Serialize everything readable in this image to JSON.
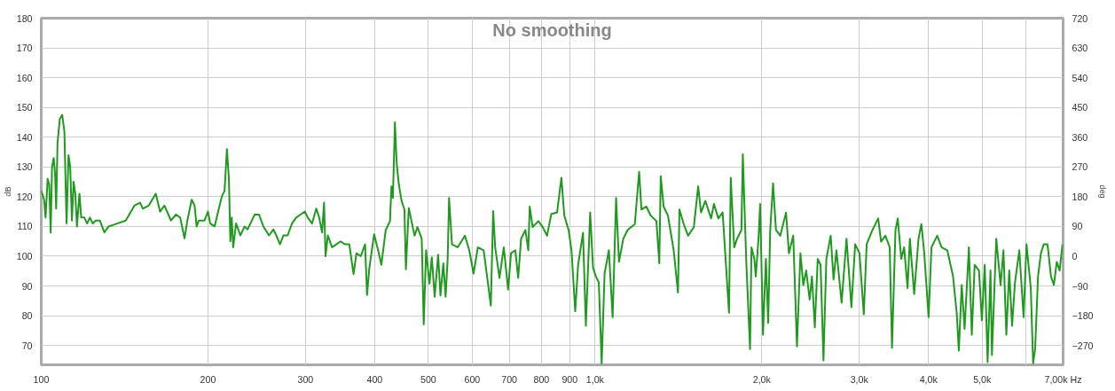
{
  "chart_data": {
    "type": "line",
    "title": "No smoothing",
    "ylabel": "dB",
    "y2label": "deg",
    "x": [
      100,
      101.2,
      101.8,
      102.7,
      103.4,
      104.0,
      104.6,
      105.3,
      105.9,
      106.4,
      107.0,
      108.0,
      109.1,
      110.1,
      111.1,
      112.0,
      112.8,
      113.6,
      114.4,
      115.2,
      116.0,
      117.2,
      118.1,
      119.6,
      121.0,
      122.4,
      123.9,
      125.4,
      127.6,
      130.0,
      132.3,
      137.1,
      142.1,
      147.3,
      150.8,
      152.6,
      156.3,
      161.0,
      163.9,
      166.9,
      171.5,
      175.1,
      178.2,
      181.4,
      183.6,
      186.9,
      189.2,
      190.8,
      192.6,
      197.2,
      200.0,
      201.9,
      205.6,
      208.0,
      211.8,
      214.3,
      216.4,
      218.2,
      219.5,
      220.8,
      222.1,
      224.8,
      228.8,
      232.9,
      235.8,
      238.6,
      242.9,
      247.3,
      251.8,
      257.8,
      262.5,
      265.7,
      269.8,
      273.7,
      278.6,
      283.6,
      288.7,
      293.9,
      299.2,
      302.8,
      308.3,
      313.8,
      317.6,
      321.4,
      324.1,
      326.1,
      329.2,
      335.0,
      341.1,
      347.2,
      353.5,
      359.9,
      366.4,
      370.8,
      377.5,
      384.3,
      387.5,
      391.2,
      399.1,
      406.4,
      411.3,
      418.8,
      426.3,
      428.9,
      431.5,
      435.1,
      438.3,
      442.0,
      447.3,
      452.7,
      455.4,
      460.9,
      472.1,
      477.8,
      486.4,
      490.5,
      495.3,
      502.3,
      507.2,
      513.3,
      520.8,
      525.8,
      532.1,
      537.2,
      541.8,
      545.0,
      551.6,
      564.9,
      582.1,
      592.7,
      603.4,
      614.3,
      629.2,
      638.3,
      648.3,
      654.6,
      660.1,
      672.0,
      684.2,
      696.6,
      705.0,
      717.8,
      726.4,
      735.2,
      748.5,
      757.6,
      762.1,
      771.3,
      790.0,
      804.3,
      818.9,
      833.7,
      853.9,
      869.4,
      879.8,
      895.8,
      906.6,
      920.8,
      931.9,
      951.1,
      962.4,
      979.8,
      991.6,
      1003.6,
      1015.6,
      1027.9,
      1040.3,
      1059.1,
      1075.8,
      1091.4,
      1104.5,
      1124.5,
      1144.9,
      1179.7,
      1201.1,
      1212.6,
      1237.6,
      1260.0,
      1290.5,
      1306.1,
      1313.9,
      1329.7,
      1353.8,
      1386.6,
      1411.7,
      1420.2,
      1445.9,
      1472.1,
      1507.8,
      1535.1,
      1553.6,
      1581.7,
      1620.0,
      1639.5,
      1669.2,
      1699.5,
      1745.3,
      1757.9,
      1783.3,
      1804.8,
      1837.5,
      1848.5,
      1859.6,
      1875.2,
      1904.7,
      1916.1,
      1939.2,
      1950.8,
      1974.3,
      1986.2,
      1998.1,
      2010.1,
      2034.3,
      2053.9,
      2071.2,
      2096.1,
      2121.4,
      2159.8,
      2212.1,
      2238.8,
      2279.3,
      2315.1,
      2348.6,
      2376.9,
      2405.5,
      2440.3,
      2463.8,
      2493.4,
      2523.5,
      2553.9,
      2584.6,
      2615.8,
      2663.2,
      2695.3,
      2727.8,
      2787.2,
      2844.5,
      2903.0,
      2948.6,
      3002.0,
      3056.4,
      3093.2,
      3168.2,
      3244.9,
      3284.0,
      3343.5,
      3404.1,
      3436.9,
      3486.6,
      3520.2,
      3571.1,
      3614.1,
      3666.4,
      3701.7,
      3768.8,
      3837.1,
      3883.3,
      3930.1,
      4001.3,
      4049.5,
      4147.6,
      4222.8,
      4325.1,
      4430.0,
      4499.5,
      4537.3,
      4592.0,
      4647.3,
      4731.5,
      4788.5,
      4846.2,
      4934.0,
      4993.4,
      5053.6,
      5114.4,
      5176.0,
      5207.1,
      5301.4,
      5397.5,
      5462.5,
      5528.3,
      5594.9,
      5662.3,
      5730.5,
      5834.3,
      5940.0,
      6011.6,
      6120.5,
      6179.4,
      6231.4,
      6306.5,
      6382.4,
      6459.3,
      6560.7,
      6655.6,
      6735.8,
      6816.9,
      6899.0,
      6982.1
    ],
    "series": [
      {
        "color": "#1f9a1f",
        "values": [
          122,
          119,
          113,
          126,
          124,
          108,
          130,
          133,
          128,
          116,
          138,
          146,
          147.5,
          142,
          111,
          134,
          130,
          112,
          125,
          121,
          110,
          121,
          113,
          113,
          111,
          113,
          111,
          112,
          112,
          108,
          110,
          111,
          112,
          117,
          118,
          116,
          117,
          121,
          115,
          117,
          112,
          114,
          113,
          106,
          112,
          119,
          117,
          110,
          112,
          112,
          115,
          111,
          110,
          114,
          120,
          122,
          136,
          126,
          105,
          113,
          103,
          111,
          107,
          110,
          109,
          111,
          114,
          114,
          110,
          107,
          109,
          107,
          104,
          107,
          107,
          111,
          113,
          114,
          115,
          113,
          111,
          116,
          113,
          108,
          118,
          100,
          107,
          103,
          104,
          105,
          104,
          104,
          94,
          101,
          100,
          104,
          87,
          96,
          107.4,
          101.5,
          97.1,
          108.8,
          111.8,
          123.5,
          119.6,
          145.0,
          131.3,
          124.5,
          118.6,
          115.7,
          95.6,
          116.2,
          106.9,
          109.8,
          105.9,
          77.1,
          102.0,
          90.8,
          99.6,
          86.4,
          100.5,
          86.8,
          97.6,
          86.4,
          99.1,
          119.6,
          104.0,
          103.0,
          106.9,
          102.0,
          94.2,
          103.0,
          102.0,
          93.2,
          83.4,
          115.2,
          103.0,
          92.7,
          103.0,
          88.8,
          101.0,
          102.0,
          92.7,
          105.9,
          108.8,
          102.0,
          116.7,
          109.8,
          111.8,
          109.8,
          106.9,
          114.2,
          114.7,
          126.4,
          113.7,
          108.8,
          102.0,
          81.5,
          97.1,
          107.9,
          76.6,
          114.7,
          96.1,
          93.2,
          91.2,
          64,
          94.2,
          102.0,
          79.5,
          119.6,
          98.1,
          105.9,
          108.8,
          110.8,
          128.4,
          115.7,
          116.7,
          113.7,
          111.8,
          97.6,
          126.9,
          116.7,
          113.7,
          102.0,
          87.8,
          115.7,
          110.8,
          106.9,
          109.8,
          123.5,
          114.7,
          118.6,
          112.7,
          117.6,
          112.7,
          114.7,
          81.0,
          126.4,
          103.0,
          105.9,
          108.8,
          134.3,
          118.6,
          98.1,
          68.8,
          103.0,
          99.1,
          93.2,
          106.9,
          117.6,
          96.1,
          73.6,
          99.1,
          77.6,
          108.8,
          124.5,
          108.8,
          106.9,
          114.7,
          101.0,
          106.9,
          69.7,
          101.0,
          90.3,
          95.2,
          85.4,
          93.2,
          76.1,
          99.1,
          97.1,
          65,
          99.1,
          106.9,
          92.2,
          102.0,
          84.4,
          105.9,
          82.9,
          104.0,
          101.0,
          80.5,
          104.0,
          108.8,
          112.7,
          104.9,
          106.9,
          103.0,
          69.2,
          108.8,
          112.7,
          99.1,
          103.0,
          89.3,
          105.9,
          87.3,
          105.9,
          110.8,
          101.0,
          79.5,
          103.0,
          106.9,
          103.0,
          102.0,
          93.2,
          80.5,
          68.3,
          90.3,
          75.6,
          103.0,
          73.6,
          97.1,
          95.2,
          78.5,
          97.1,
          64.5,
          95.2,
          66.8,
          105.9,
          90.3,
          102.0,
          73.6,
          95.2,
          76.6,
          91.2,
          102.0,
          79.5,
          104.0,
          89.3,
          64,
          68.8,
          93.2,
          101.0,
          104.0,
          104.0,
          93.2,
          90.3,
          98.1,
          95.2,
          104.0
        ]
      }
    ],
    "xlim": [
      100,
      7000
    ],
    "xticks": [
      100,
      200,
      300,
      400,
      500,
      600,
      700,
      800,
      900,
      {
        "value": 1000,
        "label": "1,0k"
      },
      {
        "value": 2000,
        "label": "2,0k"
      },
      {
        "value": 3000,
        "label": "3,0k"
      },
      {
        "value": 4000,
        "label": "4,0k"
      },
      {
        "value": 5000,
        "label": "5,0k"
      },
      {
        "value": 6000,
        "label": null
      },
      {
        "value": 7000,
        "label": "7,00k Hz"
      }
    ],
    "ylim": [
      63.5,
      180
    ],
    "yticks": [
      70,
      80,
      90,
      100,
      110,
      120,
      130,
      140,
      150,
      160,
      170,
      180
    ],
    "y2lim": [
      -328.5,
      720
    ],
    "y2ticks": [
      -270,
      -180,
      -90,
      0,
      90,
      180,
      270,
      360,
      450,
      540,
      630,
      720
    ],
    "grid": true,
    "log": "x"
  }
}
